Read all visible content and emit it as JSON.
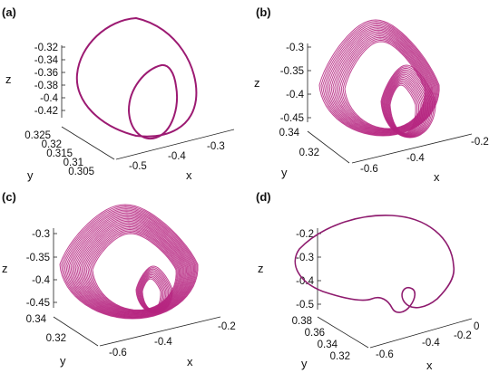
{
  "chart_data": [
    {
      "type": "line",
      "panel_label": "(a)",
      "color": "#9c1a72",
      "xlabel": "x",
      "ylabel": "y",
      "zlabel": "z",
      "x_ticks": [
        "-0.5",
        "-0.4",
        "-0.3"
      ],
      "y_ticks": [
        "0.325",
        "0.32",
        "0.315",
        "0.31",
        "0.305"
      ],
      "z_ticks": [
        "-0.32",
        "-0.34",
        "-0.36",
        "-0.38",
        "-0.4",
        "-0.42"
      ],
      "xlim": [
        -0.55,
        -0.25
      ],
      "ylim": [
        0.303,
        0.327
      ],
      "zlim": [
        -0.43,
        -0.31
      ],
      "projection": "3d",
      "grid": false
    },
    {
      "type": "line",
      "panel_label": "(b)",
      "color": "#b5237f",
      "xlabel": "x",
      "ylabel": "y",
      "zlabel": "z",
      "x_ticks": [
        "-0.6",
        "-0.4",
        "-0.2"
      ],
      "y_ticks": [
        "0.34",
        "0.32"
      ],
      "z_ticks": [
        "-0.3",
        "-0.35",
        "-0.4",
        "-0.45"
      ],
      "xlim": [
        -0.65,
        -0.15
      ],
      "ylim": [
        0.31,
        0.345
      ],
      "zlim": [
        -0.46,
        -0.28
      ],
      "projection": "3d",
      "grid": false
    },
    {
      "type": "line",
      "panel_label": "(c)",
      "color": "#b5237f",
      "xlabel": "x",
      "ylabel": "y",
      "zlabel": "z",
      "x_ticks": [
        "-0.6",
        "-0.4",
        "-0.2"
      ],
      "y_ticks": [
        "0.34",
        "0.32"
      ],
      "z_ticks": [
        "-0.3",
        "-0.35",
        "-0.4",
        "-0.45"
      ],
      "xlim": [
        -0.65,
        -0.15
      ],
      "ylim": [
        0.31,
        0.345
      ],
      "zlim": [
        -0.46,
        -0.28
      ],
      "projection": "3d",
      "grid": false
    },
    {
      "type": "line",
      "panel_label": "(d)",
      "color": "#8e1b6e",
      "xlabel": "x",
      "ylabel": "y",
      "zlabel": "z",
      "x_ticks": [
        "-0.6",
        "-0.4",
        "-0.2",
        "0"
      ],
      "y_ticks": [
        "0.38",
        "0.36",
        "0.34",
        "0.32"
      ],
      "z_ticks": [
        "-0.2",
        "-0.3",
        "-0.4",
        "-0.5"
      ],
      "xlim": [
        -0.7,
        0.05
      ],
      "ylim": [
        0.31,
        0.39
      ],
      "zlim": [
        -0.55,
        -0.15
      ],
      "projection": "3d",
      "grid": false
    }
  ]
}
